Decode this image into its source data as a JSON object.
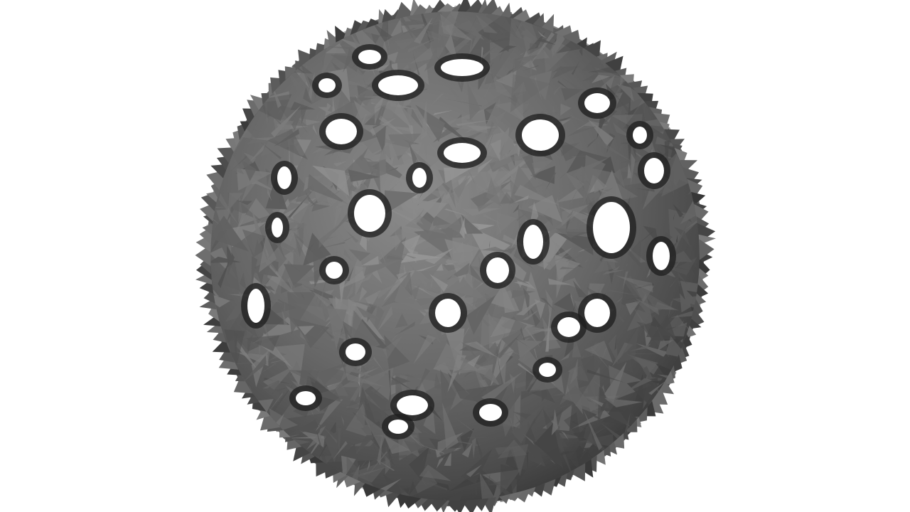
{
  "scene": {
    "subject": "lattice-sphere-mesh",
    "background_color": "#ffffff",
    "surface_color": "#6b6b6b",
    "highlight_color": "#9a9a9a",
    "shadow_color": "#1e1e1e",
    "hole_color": "#ffffff"
  }
}
